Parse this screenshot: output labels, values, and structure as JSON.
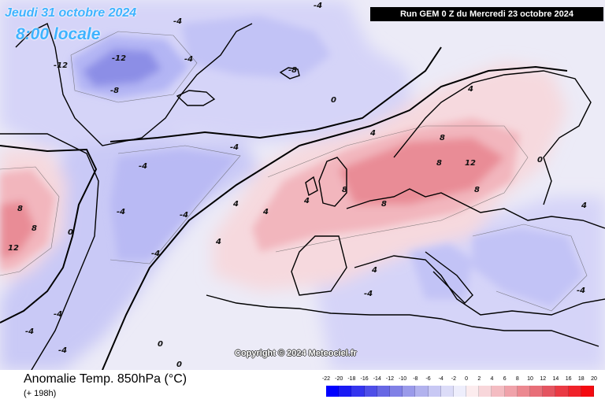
{
  "header": {
    "date_text": "Jeudi 31 octobre 2024",
    "time_text": "8:00 locale",
    "run_text": "Run GEM 0 Z du Mercredi 23 octobre 2024"
  },
  "map": {
    "copyright": "Copyright © 2024 Meteociel.fr",
    "colors": {
      "ocean_base": "#ecebf7",
      "cold_light": "#d5d4f8",
      "cold_mid": "#b3b5f4",
      "cold_deep": "#8c8ee6",
      "warm_light": "#f6d9de",
      "warm_mid": "#f2b6bd",
      "warm_deep": "#e98c96",
      "coast": "#000000"
    },
    "field_labels": [
      "-12",
      "-12",
      "-8",
      "-8",
      "-4",
      "-4",
      "-4",
      "-4",
      "-4",
      "-4",
      "-4",
      "-4",
      "-4",
      "-4",
      "-4",
      "-4",
      "-4",
      "0",
      "0",
      "0",
      "0",
      "0",
      "4",
      "4",
      "4",
      "4",
      "4",
      "4",
      "4",
      "4",
      "8",
      "8",
      "8",
      "8",
      "8",
      "8",
      "8",
      "12",
      "12"
    ]
  },
  "footer": {
    "title": "Anomalie Temp. 850hPa (°C)",
    "subtitle": "(+ 198h)"
  },
  "legend": {
    "tick_labels": [
      "-22",
      "-20",
      "-18",
      "-16",
      "-14",
      "-12",
      "-10",
      "-8",
      "-6",
      "-4",
      "-2",
      "0",
      "2",
      "4",
      "6",
      "8",
      "10",
      "12",
      "14",
      "16",
      "18",
      "20"
    ],
    "colors": [
      "#0000ff",
      "#1a1af4",
      "#3434ee",
      "#4e4ee8",
      "#6767e4",
      "#8080e6",
      "#9a9aea",
      "#b2b2ee",
      "#c8c8f4",
      "#dcdcf8",
      "#eeeefc",
      "#fcecee",
      "#f8d6da",
      "#f4bcc2",
      "#f0a2aa",
      "#ec8890",
      "#e86e78",
      "#e45460",
      "#ea3a44",
      "#f0222a",
      "#f40a10"
    ]
  }
}
